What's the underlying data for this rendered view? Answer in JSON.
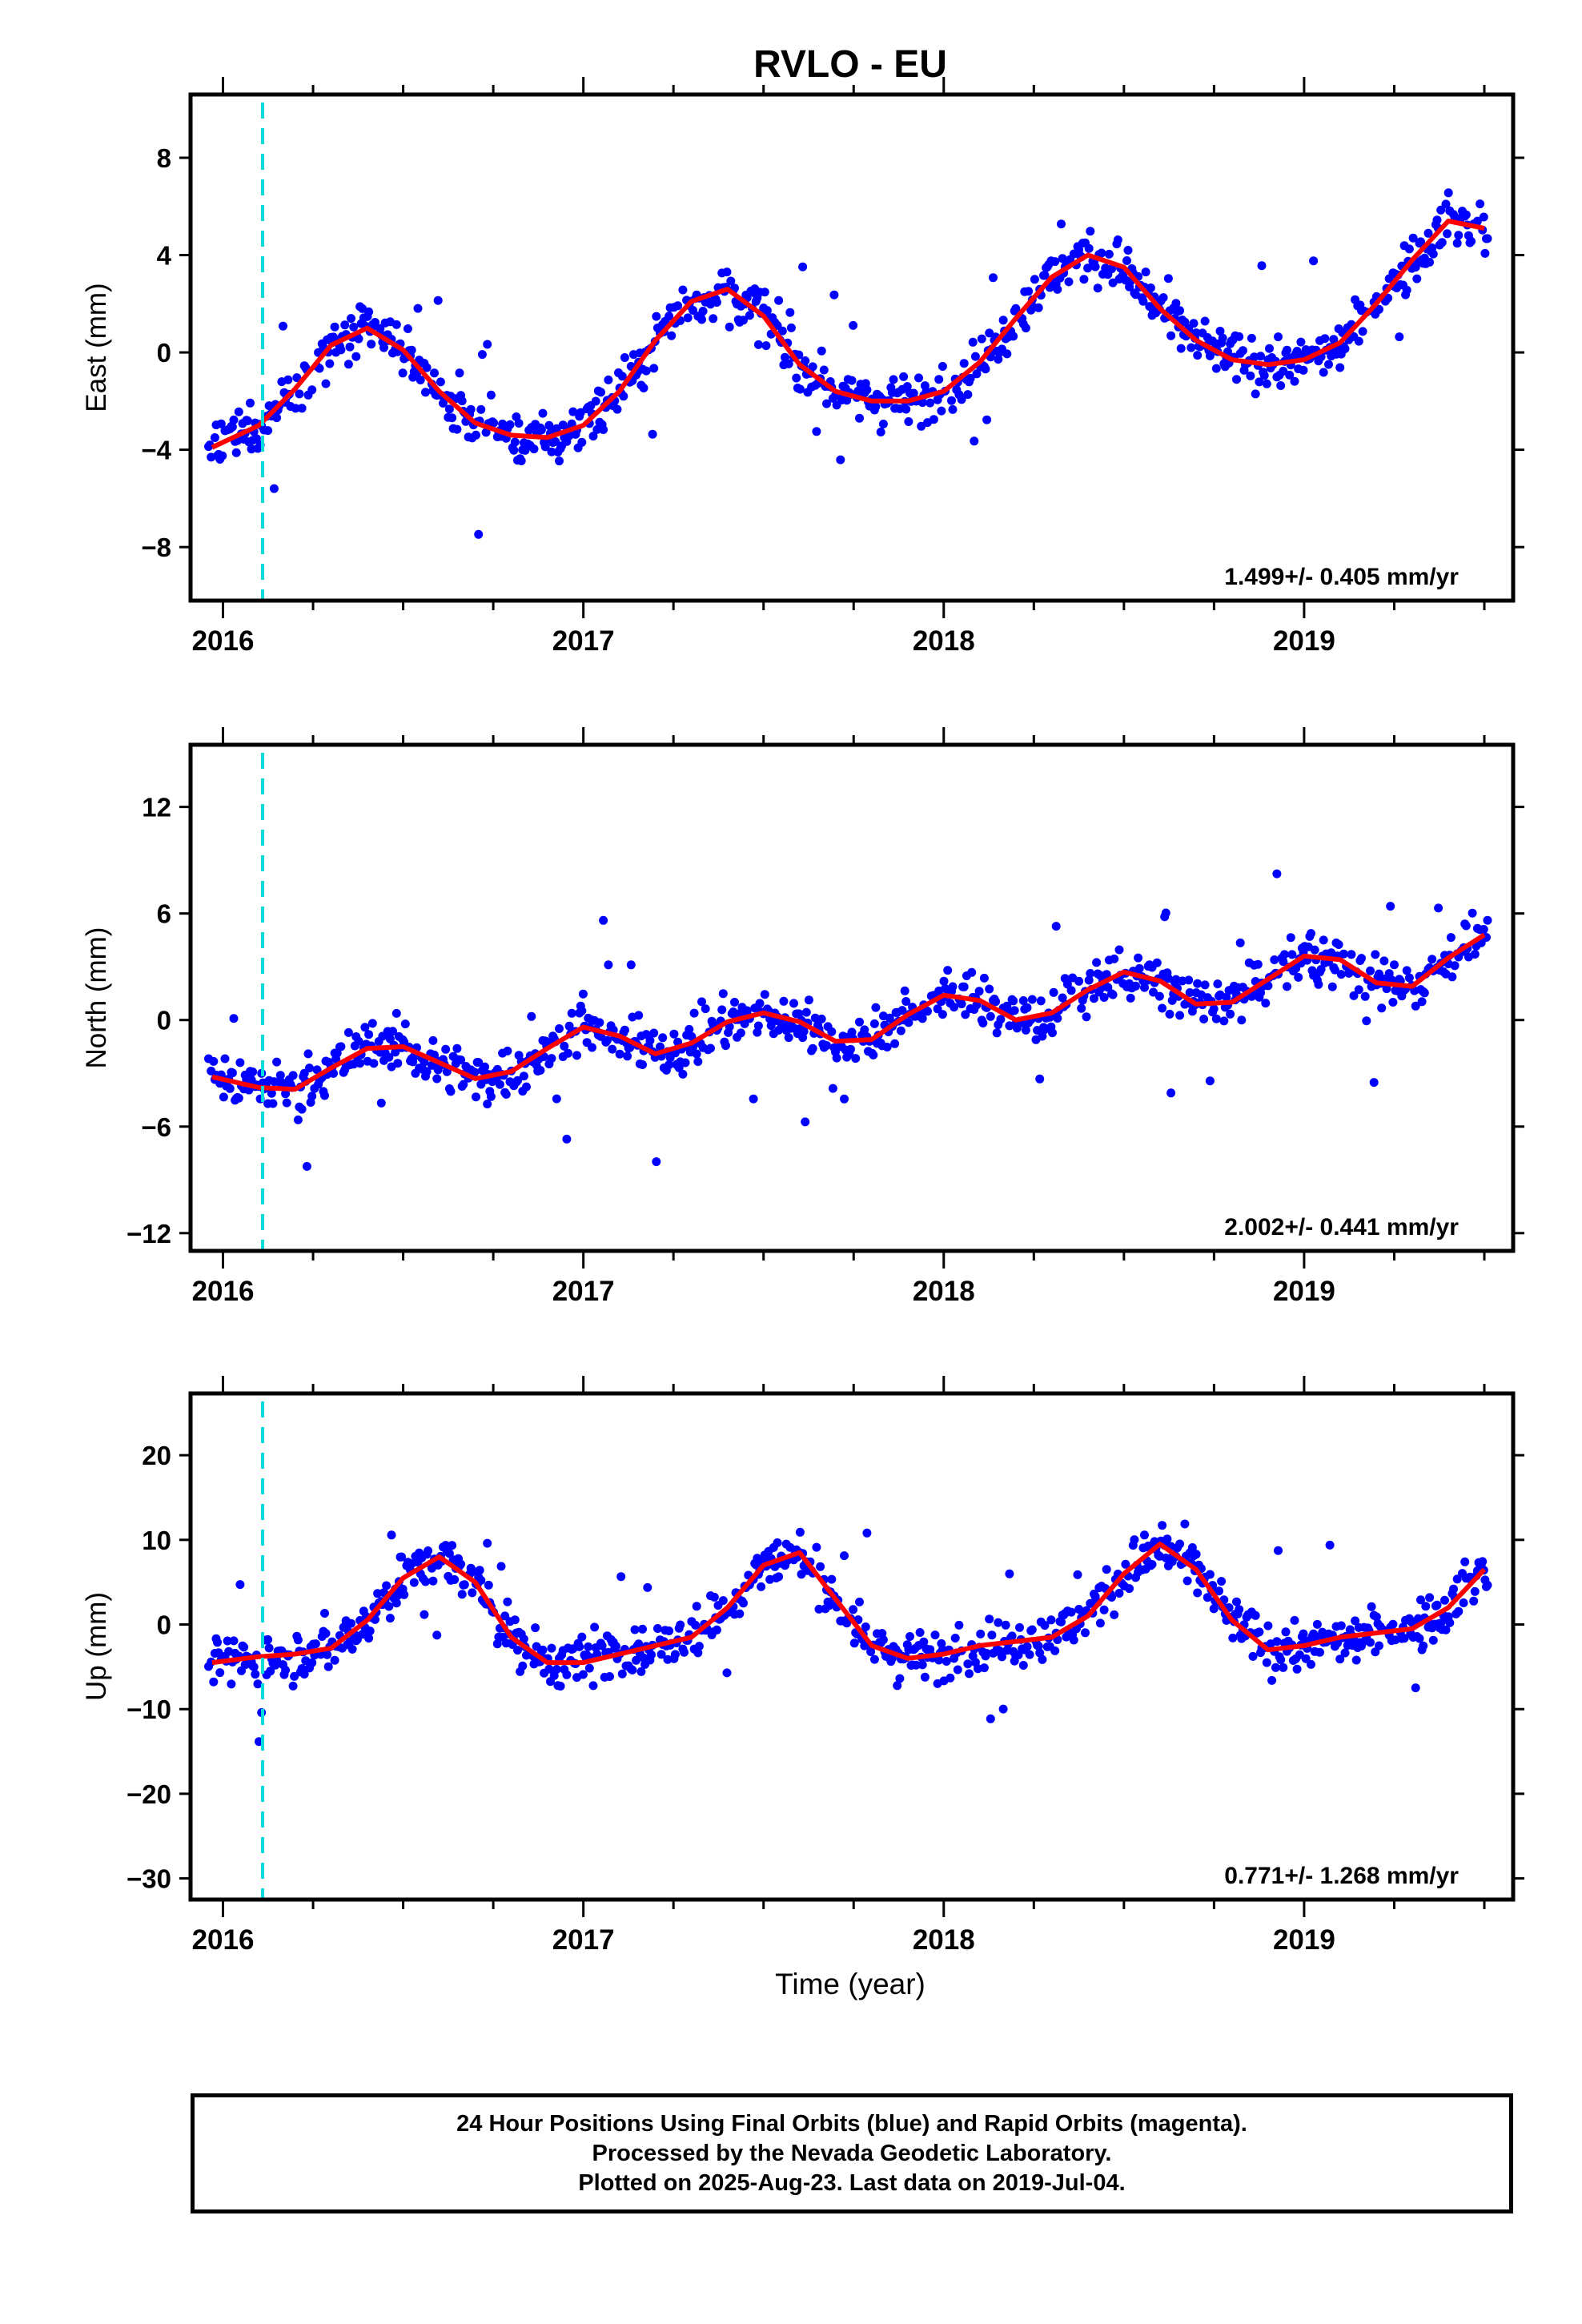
{
  "title": "RVLO - EU",
  "colors": {
    "data": "#0000ff",
    "fit": "#ff0000",
    "event": "#00dcdc",
    "frame": "#000000"
  },
  "xlabel": "Time (year)",
  "event_marker_year": 2016.11,
  "footer": {
    "line1": "24 Hour Positions Using Final Orbits (blue) and Rapid Orbits (magenta).",
    "line2": "Processed by the Nevada Geodetic Laboratory.",
    "line3": "Plotted on 2025-Aug-23. Last data on 2019-Jul-04."
  },
  "chart_data": [
    {
      "type": "scatter",
      "component": "east",
      "ylabel": "East (mm)",
      "velocity_label": "1.499+/- 0.405 mm/yr",
      "xlim": [
        2015.91,
        2019.58
      ],
      "ylim": [
        -10.2,
        10.6
      ],
      "x_ticks": [
        "2016",
        "2017",
        "2018",
        "2019"
      ],
      "y_ticks": [
        -8,
        -4,
        0,
        4,
        8
      ],
      "fit_curve": {
        "x": [
          2015.97,
          2016.1,
          2016.2,
          2016.3,
          2016.4,
          2016.5,
          2016.6,
          2016.7,
          2016.8,
          2016.9,
          2017.0,
          2017.1,
          2017.2,
          2017.3,
          2017.4,
          2017.5,
          2017.6,
          2017.7,
          2017.8,
          2017.9,
          2018.0,
          2018.1,
          2018.2,
          2018.3,
          2018.4,
          2018.5,
          2018.6,
          2018.7,
          2018.8,
          2018.9,
          2019.0,
          2019.1,
          2019.2,
          2019.3,
          2019.4,
          2019.5
        ],
        "y": [
          -3.9,
          -3.0,
          -1.5,
          0.3,
          1.0,
          0.1,
          -1.6,
          -2.9,
          -3.4,
          -3.5,
          -3.0,
          -1.6,
          0.5,
          2.1,
          2.6,
          1.5,
          -0.5,
          -1.6,
          -2.0,
          -2.0,
          -1.6,
          -0.4,
          1.4,
          3.1,
          4.0,
          3.5,
          1.8,
          0.5,
          -0.3,
          -0.5,
          -0.3,
          0.4,
          2.0,
          3.8,
          5.4,
          5.1
        ]
      }
    },
    {
      "type": "scatter",
      "component": "north",
      "ylabel": "North (mm)",
      "velocity_label": "2.002+/- 0.441 mm/yr",
      "xlim": [
        2015.91,
        2019.58
      ],
      "ylim": [
        -13.0,
        15.5
      ],
      "x_ticks": [
        "2016",
        "2017",
        "2018",
        "2019"
      ],
      "y_ticks": [
        -12,
        -6,
        0,
        6,
        12
      ],
      "fit_curve": {
        "x": [
          2015.97,
          2016.1,
          2016.2,
          2016.3,
          2016.4,
          2016.5,
          2016.6,
          2016.7,
          2016.8,
          2016.9,
          2017.0,
          2017.1,
          2017.2,
          2017.3,
          2017.4,
          2017.5,
          2017.6,
          2017.7,
          2017.8,
          2017.9,
          2018.0,
          2018.1,
          2018.2,
          2018.3,
          2018.4,
          2018.5,
          2018.6,
          2018.7,
          2018.8,
          2018.9,
          2019.0,
          2019.1,
          2019.2,
          2019.3,
          2019.4,
          2019.5
        ],
        "y": [
          -3.2,
          -3.8,
          -3.9,
          -2.7,
          -1.6,
          -1.5,
          -2.4,
          -3.3,
          -2.9,
          -1.6,
          -0.4,
          -0.9,
          -1.9,
          -1.3,
          -0.1,
          0.4,
          -0.1,
          -1.2,
          -1.1,
          0.3,
          1.4,
          1.1,
          0.0,
          0.4,
          1.7,
          2.7,
          2.2,
          0.9,
          1.0,
          2.3,
          3.6,
          3.4,
          2.1,
          1.9,
          3.5,
          4.8
        ]
      }
    },
    {
      "type": "scatter",
      "component": "up",
      "ylabel": "Up (mm)",
      "velocity_label": "0.771+/- 1.268 mm/yr",
      "xlim": [
        2015.91,
        2019.58
      ],
      "ylim": [
        -32.5,
        27.3
      ],
      "x_ticks": [
        "2016",
        "2017",
        "2018",
        "2019"
      ],
      "y_ticks": [
        -30,
        -20,
        -10,
        0,
        10,
        20
      ],
      "fit_curve": {
        "x": [
          2015.97,
          2016.1,
          2016.2,
          2016.3,
          2016.4,
          2016.5,
          2016.6,
          2016.7,
          2016.8,
          2016.9,
          2017.0,
          2017.1,
          2017.2,
          2017.3,
          2017.4,
          2017.5,
          2017.6,
          2017.7,
          2017.8,
          2017.9,
          2018.0,
          2018.1,
          2018.2,
          2018.3,
          2018.4,
          2018.5,
          2018.6,
          2018.7,
          2018.8,
          2018.9,
          2019.0,
          2019.1,
          2019.2,
          2019.3,
          2019.4,
          2019.5
        ],
        "y": [
          -4.5,
          -3.8,
          -3.5,
          -2.8,
          0.5,
          5.5,
          8.0,
          5.0,
          -1.5,
          -4.5,
          -4.5,
          -3.5,
          -2.5,
          -1.5,
          2.0,
          7.0,
          8.5,
          3.0,
          -2.5,
          -4.0,
          -3.5,
          -2.5,
          -2.0,
          -1.5,
          1.0,
          6.0,
          9.5,
          6.5,
          0.5,
          -3.0,
          -2.5,
          -1.5,
          -1.0,
          -0.5,
          2.0,
          6.5
        ]
      }
    }
  ]
}
